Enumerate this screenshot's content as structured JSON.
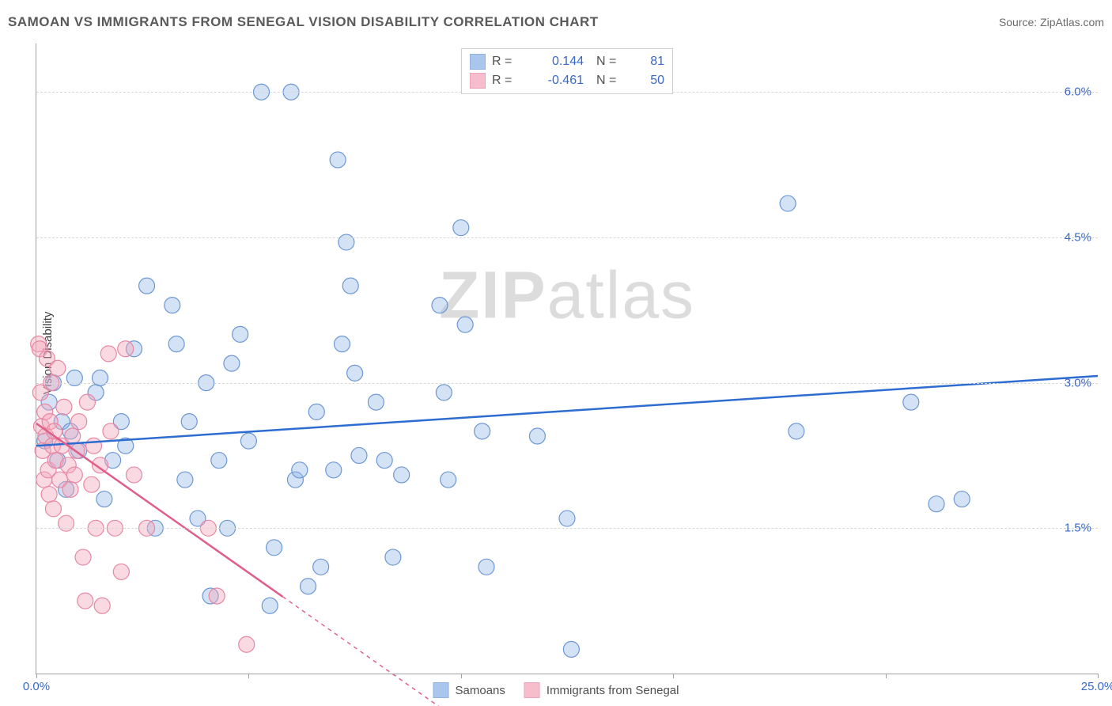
{
  "header": {
    "title": "SAMOAN VS IMMIGRANTS FROM SENEGAL VISION DISABILITY CORRELATION CHART",
    "source_label": "Source: ZipAtlas.com"
  },
  "watermark": {
    "bold": "ZIP",
    "light": "atlas"
  },
  "y_axis_label": "Vision Disability",
  "chart": {
    "type": "scatter",
    "xlim": [
      0.0,
      25.0
    ],
    "ylim": [
      0.0,
      6.5
    ],
    "x_ticks": [
      0.0,
      5.0,
      10.0,
      15.0,
      20.0,
      25.0
    ],
    "x_tick_labels": [
      "0.0%",
      "",
      "",
      "",
      "",
      "25.0%"
    ],
    "y_ticks": [
      1.5,
      3.0,
      4.5,
      6.0
    ],
    "y_tick_labels": [
      "1.5%",
      "3.0%",
      "4.5%",
      "6.0%"
    ],
    "grid_color": "#d8d8d8",
    "axis_color": "#a0a0a0",
    "background_color": "#ffffff",
    "series": [
      {
        "name": "Samoans",
        "color_fill": "#8fb4e8",
        "color_stroke": "#6d97d4",
        "fill_opacity": 0.38,
        "marker_radius": 10,
        "trend": {
          "x1": 0.0,
          "y1": 2.35,
          "x2": 25.0,
          "y2": 3.07,
          "dash_from_x": null,
          "color": "#2d6cd0",
          "width": 2.5
        },
        "R": "0.144",
        "N": "81",
        "points": [
          [
            0.2,
            2.4
          ],
          [
            0.3,
            2.8
          ],
          [
            0.4,
            3.0
          ],
          [
            0.5,
            2.2
          ],
          [
            0.6,
            2.6
          ],
          [
            0.7,
            1.9
          ],
          [
            0.8,
            2.5
          ],
          [
            0.9,
            3.05
          ],
          [
            1.0,
            2.3
          ],
          [
            1.4,
            2.9
          ],
          [
            1.5,
            3.05
          ],
          [
            1.6,
            1.8
          ],
          [
            1.8,
            2.2
          ],
          [
            2.0,
            2.6
          ],
          [
            2.1,
            2.35
          ],
          [
            2.3,
            3.35
          ],
          [
            2.6,
            4.0
          ],
          [
            2.8,
            1.5
          ],
          [
            3.2,
            3.8
          ],
          [
            3.3,
            3.4
          ],
          [
            3.5,
            2.0
          ],
          [
            3.6,
            2.6
          ],
          [
            3.8,
            1.6
          ],
          [
            4.0,
            3.0
          ],
          [
            4.1,
            0.8
          ],
          [
            4.3,
            2.2
          ],
          [
            4.5,
            1.5
          ],
          [
            4.6,
            3.2
          ],
          [
            4.8,
            3.5
          ],
          [
            5.0,
            2.4
          ],
          [
            5.3,
            6.0
          ],
          [
            5.5,
            0.7
          ],
          [
            5.6,
            1.3
          ],
          [
            6.0,
            6.0
          ],
          [
            6.1,
            2.0
          ],
          [
            6.2,
            2.1
          ],
          [
            6.4,
            0.9
          ],
          [
            6.6,
            2.7
          ],
          [
            6.7,
            1.1
          ],
          [
            7.0,
            2.1
          ],
          [
            7.1,
            5.3
          ],
          [
            7.2,
            3.4
          ],
          [
            7.3,
            4.45
          ],
          [
            7.4,
            4.0
          ],
          [
            7.5,
            3.1
          ],
          [
            7.6,
            2.25
          ],
          [
            8.0,
            2.8
          ],
          [
            8.2,
            2.2
          ],
          [
            8.4,
            1.2
          ],
          [
            8.6,
            2.05
          ],
          [
            9.5,
            3.8
          ],
          [
            9.6,
            2.9
          ],
          [
            9.7,
            2.0
          ],
          [
            10.0,
            4.6
          ],
          [
            10.1,
            3.6
          ],
          [
            10.5,
            2.5
          ],
          [
            10.6,
            1.1
          ],
          [
            11.8,
            2.45
          ],
          [
            12.5,
            1.6
          ],
          [
            12.6,
            0.25
          ],
          [
            17.7,
            4.85
          ],
          [
            17.9,
            2.5
          ],
          [
            20.6,
            2.8
          ],
          [
            21.2,
            1.75
          ],
          [
            21.8,
            1.8
          ]
        ]
      },
      {
        "name": "Immigrants from Senegal",
        "color_fill": "#f4a7bb",
        "color_stroke": "#e887a3",
        "fill_opacity": 0.42,
        "marker_radius": 10,
        "trend": {
          "x1": 0.0,
          "y1": 2.58,
          "x2": 10.0,
          "y2": -0.5,
          "dash_from_x": 5.8,
          "color": "#e05f8a",
          "width": 2.5
        },
        "R": "-0.461",
        "N": "50",
        "points": [
          [
            0.05,
            3.4
          ],
          [
            0.08,
            3.35
          ],
          [
            0.1,
            2.9
          ],
          [
            0.12,
            2.55
          ],
          [
            0.15,
            2.3
          ],
          [
            0.18,
            2.0
          ],
          [
            0.2,
            2.7
          ],
          [
            0.22,
            2.45
          ],
          [
            0.25,
            3.25
          ],
          [
            0.28,
            2.1
          ],
          [
            0.3,
            1.85
          ],
          [
            0.32,
            2.6
          ],
          [
            0.35,
            3.0
          ],
          [
            0.38,
            2.35
          ],
          [
            0.4,
            1.7
          ],
          [
            0.42,
            2.5
          ],
          [
            0.45,
            2.2
          ],
          [
            0.5,
            3.15
          ],
          [
            0.55,
            2.0
          ],
          [
            0.6,
            2.35
          ],
          [
            0.65,
            2.75
          ],
          [
            0.7,
            1.55
          ],
          [
            0.75,
            2.15
          ],
          [
            0.8,
            1.9
          ],
          [
            0.85,
            2.45
          ],
          [
            0.9,
            2.05
          ],
          [
            0.95,
            2.3
          ],
          [
            1.0,
            2.6
          ],
          [
            1.1,
            1.2
          ],
          [
            1.15,
            0.75
          ],
          [
            1.2,
            2.8
          ],
          [
            1.3,
            1.95
          ],
          [
            1.35,
            2.35
          ],
          [
            1.4,
            1.5
          ],
          [
            1.5,
            2.15
          ],
          [
            1.55,
            0.7
          ],
          [
            1.7,
            3.3
          ],
          [
            1.75,
            2.5
          ],
          [
            1.85,
            1.5
          ],
          [
            2.0,
            1.05
          ],
          [
            2.1,
            3.35
          ],
          [
            2.3,
            2.05
          ],
          [
            2.6,
            1.5
          ],
          [
            4.05,
            1.5
          ],
          [
            4.25,
            0.8
          ],
          [
            4.95,
            0.3
          ]
        ]
      }
    ]
  },
  "legend_top": {
    "rows": [
      {
        "swatch_fill": "#8fb4e8",
        "swatch_stroke": "#6d97d4",
        "r_label": "R =",
        "r_val": "0.144",
        "n_label": "N =",
        "n_val": "81"
      },
      {
        "swatch_fill": "#f4a7bb",
        "swatch_stroke": "#e887a3",
        "r_label": "R =",
        "r_val": "-0.461",
        "n_label": "N =",
        "n_val": "50"
      }
    ]
  },
  "legend_bottom": {
    "items": [
      {
        "swatch_fill": "#8fb4e8",
        "swatch_stroke": "#6d97d4",
        "label": "Samoans"
      },
      {
        "swatch_fill": "#f4a7bb",
        "swatch_stroke": "#e887a3",
        "label": "Immigrants from Senegal"
      }
    ]
  }
}
